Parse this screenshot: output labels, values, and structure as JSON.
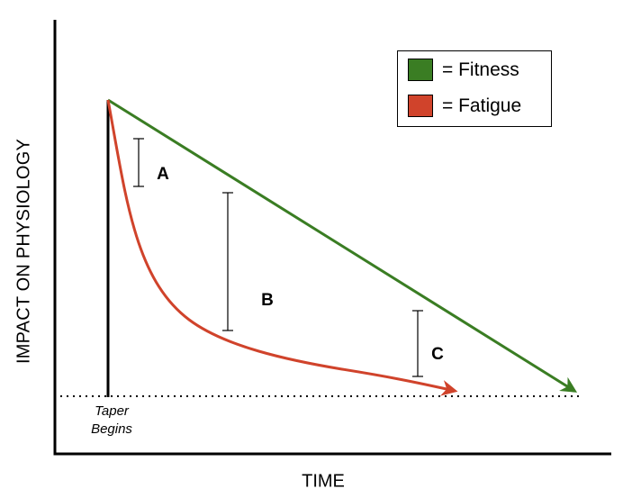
{
  "axes": {
    "y_label": "IMPACT ON PHYSIOLOGY",
    "x_label": "TIME"
  },
  "legend": [
    {
      "label": "= Fitness",
      "color": "#3a7d23"
    },
    {
      "label": "= Fatigue",
      "color": "#d0432b"
    }
  ],
  "annotations": {
    "taper_line1": "Taper",
    "taper_line2": "Begins",
    "gap_a": "A",
    "gap_b": "B",
    "gap_c": "C"
  },
  "colors": {
    "fitness": "#3a7d23",
    "fatigue": "#d0432b",
    "axis": "#000000"
  }
}
